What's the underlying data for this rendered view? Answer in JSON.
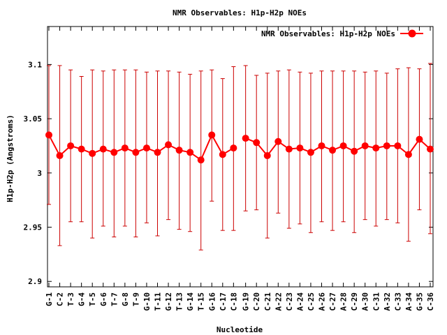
{
  "chart_data": {
    "type": "line",
    "title": "NMR Observables: H1p-H2p NOEs",
    "xlabel": "Nucleotide",
    "ylabel": "H1p-H2p (Angstroms)",
    "ylim": [
      2.895,
      3.135
    ],
    "yticks": [
      "2.9",
      "2.95",
      "3",
      "3.05",
      "3.1"
    ],
    "legend": {
      "placement": "top-right",
      "label": "NMR Observables: H1p-H2p NOEs"
    },
    "grid": false,
    "color": "#ff0000",
    "errorbar_color": "#cc0000",
    "series": [
      {
        "name": "NMR Observables: H1p-H2p NOEs",
        "points": [
          {
            "label": "G-1",
            "y": 3.035,
            "low": 2.971,
            "high": 3.099
          },
          {
            "label": "C-2",
            "y": 3.016,
            "low": 2.933,
            "high": 3.099
          },
          {
            "label": "T-3",
            "y": 3.025,
            "low": 2.955,
            "high": 3.095
          },
          {
            "label": "G-4",
            "y": 3.022,
            "low": 2.955,
            "high": 3.089
          },
          {
            "label": "T-5",
            "y": 3.018,
            "low": 2.94,
            "high": 3.095
          },
          {
            "label": "G-6",
            "y": 3.022,
            "low": 2.951,
            "high": 3.094
          },
          {
            "label": "T-7",
            "y": 3.019,
            "low": 2.941,
            "high": 3.095
          },
          {
            "label": "G-8",
            "y": 3.023,
            "low": 2.951,
            "high": 3.095
          },
          {
            "label": "T-9",
            "y": 3.019,
            "low": 2.941,
            "high": 3.095
          },
          {
            "label": "G-10",
            "y": 3.023,
            "low": 2.954,
            "high": 3.093
          },
          {
            "label": "T-11",
            "y": 3.019,
            "low": 2.942,
            "high": 3.094
          },
          {
            "label": "G-12",
            "y": 3.026,
            "low": 2.957,
            "high": 3.094
          },
          {
            "label": "T-13",
            "y": 3.021,
            "low": 2.948,
            "high": 3.093
          },
          {
            "label": "G-14",
            "y": 3.019,
            "low": 2.946,
            "high": 3.091
          },
          {
            "label": "T-15",
            "y": 3.012,
            "low": 2.929,
            "high": 3.094
          },
          {
            "label": "G-16",
            "y": 3.035,
            "low": 2.974,
            "high": 3.095
          },
          {
            "label": "C-17",
            "y": 3.017,
            "low": 2.947,
            "high": 3.087
          },
          {
            "label": "C-18",
            "y": 3.023,
            "low": 2.947,
            "high": 3.098
          },
          {
            "label": "G-19",
            "y": 3.032,
            "low": 2.965,
            "high": 3.099
          },
          {
            "label": "C-20",
            "y": 3.028,
            "low": 2.966,
            "high": 3.09
          },
          {
            "label": "C-21",
            "y": 3.016,
            "low": 2.94,
            "high": 3.092
          },
          {
            "label": "A-22",
            "y": 3.029,
            "low": 2.963,
            "high": 3.094
          },
          {
            "label": "C-23",
            "y": 3.022,
            "low": 2.949,
            "high": 3.095
          },
          {
            "label": "A-24",
            "y": 3.023,
            "low": 2.953,
            "high": 3.093
          },
          {
            "label": "C-25",
            "y": 3.019,
            "low": 2.945,
            "high": 3.092
          },
          {
            "label": "A-26",
            "y": 3.025,
            "low": 2.955,
            "high": 3.094
          },
          {
            "label": "C-27",
            "y": 3.021,
            "low": 2.947,
            "high": 3.094
          },
          {
            "label": "A-28",
            "y": 3.025,
            "low": 2.955,
            "high": 3.094
          },
          {
            "label": "C-29",
            "y": 3.02,
            "low": 2.945,
            "high": 3.094
          },
          {
            "label": "A-30",
            "y": 3.025,
            "low": 2.957,
            "high": 3.093
          },
          {
            "label": "C-31",
            "y": 3.023,
            "low": 2.951,
            "high": 3.094
          },
          {
            "label": "A-32",
            "y": 3.025,
            "low": 2.957,
            "high": 3.092
          },
          {
            "label": "C-33",
            "y": 3.025,
            "low": 2.954,
            "high": 3.096
          },
          {
            "label": "A-34",
            "y": 3.017,
            "low": 2.937,
            "high": 3.097
          },
          {
            "label": "G-35",
            "y": 3.031,
            "low": 2.966,
            "high": 3.096
          },
          {
            "label": "C-36",
            "y": 3.022,
            "low": 2.944,
            "high": 3.101
          }
        ]
      }
    ]
  }
}
